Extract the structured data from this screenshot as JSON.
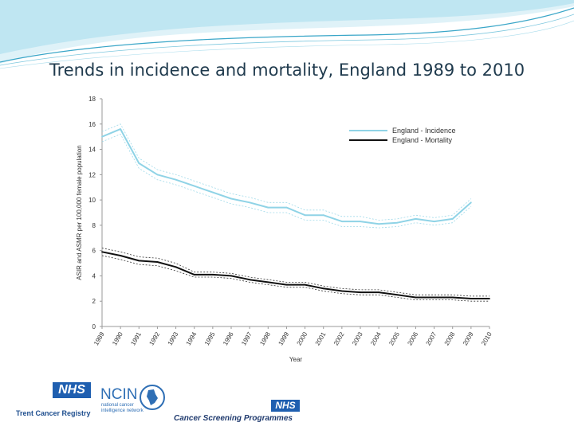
{
  "title": "Trends in incidence and mortality, England 1989 to 2010",
  "colors": {
    "incidence": "#8fd3e6",
    "mortality": "#111111",
    "wave_light": "#bfe6f2",
    "wave_dark": "#3aa6c8",
    "nhs_blue": "#1f5fb0"
  },
  "chart_data": {
    "type": "line",
    "x": [
      "1989",
      "1990",
      "1991",
      "1992",
      "1993",
      "1994",
      "1995",
      "1996",
      "1997",
      "1998",
      "1999",
      "2000",
      "2001",
      "2002",
      "2003",
      "2004",
      "2005",
      "2006",
      "2007",
      "2008",
      "2009",
      "2010"
    ],
    "xlabel": "Year",
    "ylabel": "ASIR and ASMR per 100,000 female population",
    "ylim": [
      0,
      18
    ],
    "yticks": [
      "0",
      "2",
      "4",
      "6",
      "8",
      "10",
      "12",
      "14",
      "16",
      "18"
    ],
    "grid": false,
    "legend_position": "top-right",
    "series": [
      {
        "name": "England - Incidence",
        "color": "#8fd3e6",
        "values": [
          15.0,
          15.6,
          12.9,
          12.0,
          11.6,
          11.1,
          10.6,
          10.1,
          9.8,
          9.4,
          9.4,
          8.8,
          8.8,
          8.3,
          8.3,
          8.1,
          8.2,
          8.5,
          8.3,
          8.5,
          9.8,
          null
        ],
        "ci_low": [
          14.6,
          15.2,
          12.5,
          11.6,
          11.2,
          10.7,
          10.2,
          9.7,
          9.4,
          9.0,
          9.0,
          8.4,
          8.4,
          7.9,
          7.9,
          7.8,
          7.9,
          8.2,
          8.0,
          8.2,
          9.5,
          null
        ],
        "ci_high": [
          15.4,
          16.0,
          13.3,
          12.4,
          12.0,
          11.5,
          11.0,
          10.5,
          10.2,
          9.8,
          9.8,
          9.2,
          9.2,
          8.7,
          8.7,
          8.4,
          8.5,
          8.8,
          8.6,
          8.8,
          10.1,
          null
        ]
      },
      {
        "name": "England - Mortality",
        "color": "#111111",
        "values": [
          5.9,
          5.6,
          5.2,
          5.1,
          4.7,
          4.1,
          4.1,
          4.0,
          3.7,
          3.5,
          3.3,
          3.3,
          3.0,
          2.8,
          2.7,
          2.7,
          2.5,
          2.3,
          2.3,
          2.3,
          2.2,
          2.2
        ],
        "ci_low": [
          5.6,
          5.3,
          4.9,
          4.8,
          4.4,
          3.9,
          3.9,
          3.8,
          3.5,
          3.3,
          3.1,
          3.1,
          2.8,
          2.6,
          2.5,
          2.5,
          2.3,
          2.1,
          2.1,
          2.1,
          2.0,
          2.0
        ],
        "ci_high": [
          6.2,
          5.9,
          5.5,
          5.4,
          5.0,
          4.3,
          4.3,
          4.2,
          3.9,
          3.7,
          3.5,
          3.5,
          3.2,
          3.0,
          2.9,
          2.9,
          2.7,
          2.5,
          2.5,
          2.5,
          2.4,
          2.4
        ]
      }
    ]
  },
  "logos": {
    "nhs_label": "NHS",
    "trent_label": "Trent Cancer Registry",
    "ncin_label": "NCIN",
    "ncin_tagline_1": "national cancer",
    "ncin_tagline_2": "intelligence network",
    "screening_label": "Cancer Screening Programmes"
  }
}
